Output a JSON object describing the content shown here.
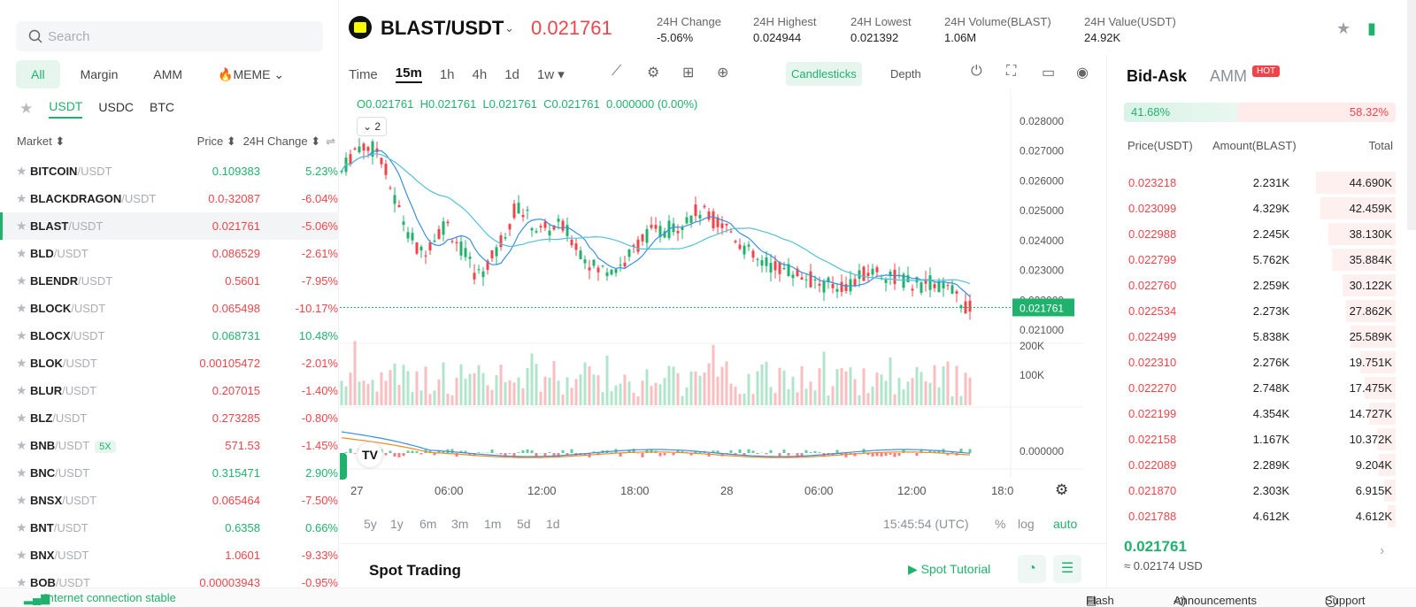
{
  "search": {
    "placeholder": "Search"
  },
  "categories": [
    "All",
    "Margin",
    "AMM",
    "🔥MEME ⌄"
  ],
  "quotes": [
    "USDT",
    "USDC",
    "BTC"
  ],
  "market_header": {
    "market": "Market ⬍",
    "price": "Price ⬍",
    "change": "24H Change ⬍"
  },
  "markets": [
    {
      "base": "BITCOIN",
      "quote": "/USDT",
      "price": "0.109383",
      "change": "5.23%",
      "dir": "up"
    },
    {
      "base": "BLACKDRAGON",
      "quote": "/USDT",
      "price": "0.0₇32087",
      "change": "-6.04%",
      "dir": "down"
    },
    {
      "base": "BLAST",
      "quote": "/USDT",
      "price": "0.021761",
      "change": "-5.06%",
      "dir": "down"
    },
    {
      "base": "BLD",
      "quote": "/USDT",
      "price": "0.086529",
      "change": "-2.61%",
      "dir": "down"
    },
    {
      "base": "BLENDR",
      "quote": "/USDT",
      "price": "0.5601",
      "change": "-7.95%",
      "dir": "down"
    },
    {
      "base": "BLOCK",
      "quote": "/USDT",
      "price": "0.065498",
      "change": "-10.17%",
      "dir": "down"
    },
    {
      "base": "BLOCX",
      "quote": "/USDT",
      "price": "0.068731",
      "change": "10.48%",
      "dir": "up"
    },
    {
      "base": "BLOK",
      "quote": "/USDT",
      "price": "0.00105472",
      "change": "-2.01%",
      "dir": "down"
    },
    {
      "base": "BLUR",
      "quote": "/USDT",
      "price": "0.207015",
      "change": "-1.40%",
      "dir": "down"
    },
    {
      "base": "BLZ",
      "quote": "/USDT",
      "price": "0.273285",
      "change": "-0.80%",
      "dir": "down"
    },
    {
      "base": "BNB",
      "quote": "/USDT",
      "price": "571.53",
      "change": "-1.45%",
      "dir": "down",
      "lev": "5X"
    },
    {
      "base": "BNC",
      "quote": "/USDT",
      "price": "0.315471",
      "change": "2.90%",
      "dir": "up"
    },
    {
      "base": "BNSX",
      "quote": "/USDT",
      "price": "0.065464",
      "change": "-7.50%",
      "dir": "down"
    },
    {
      "base": "BNT",
      "quote": "/USDT",
      "price": "0.6358",
      "change": "0.66%",
      "dir": "up"
    },
    {
      "base": "BNX",
      "quote": "/USDT",
      "price": "1.0601",
      "change": "-9.33%",
      "dir": "down"
    },
    {
      "base": "BOB",
      "quote": "/USDT",
      "price": "0.00003943",
      "change": "-0.95%",
      "dir": "down"
    }
  ],
  "pair": {
    "name": "BLAST/USDT",
    "price": "0.021761",
    "stats": [
      {
        "label": "24H Change",
        "value": "-5.06%"
      },
      {
        "label": "24H Highest",
        "value": "0.024944"
      },
      {
        "label": "24H Lowest",
        "value": "0.021392"
      },
      {
        "label": "24H Volume(BLAST)",
        "value": "1.06M"
      },
      {
        "label": "24H Value(USDT)",
        "value": "24.92K"
      }
    ]
  },
  "timeframes": [
    "Time",
    "15m",
    "1h",
    "4h",
    "1d",
    "1w ▾"
  ],
  "views": {
    "candles": "Candlesticks",
    "depth": "Depth"
  },
  "ohlc": {
    "o": "O0.021761",
    "h": "H0.021761",
    "l": "L0.021761",
    "c": "C0.021761",
    "chg": "0.000000 (0.00%)"
  },
  "indicator_toggle": "⌄ 2",
  "price_axis": [
    "0.028000",
    "0.027000",
    "0.026000",
    "0.025000",
    "0.024000",
    "0.023000",
    "0.022000",
    "0.021000"
  ],
  "last_price_tag": "0.021761",
  "volume_axis": [
    "200K",
    "100K"
  ],
  "macd_axis": "0.000000",
  "time_axis": [
    "27",
    "06:00",
    "12:00",
    "18:00",
    "28",
    "06:00",
    "12:00",
    "18:0"
  ],
  "ranges": [
    "5y",
    "1y",
    "6m",
    "3m",
    "1m",
    "5d",
    "1d"
  ],
  "clock": "15:45:54 (UTC)",
  "scale_opts": [
    "%",
    "log",
    "auto"
  ],
  "spot": {
    "title": "Spot Trading",
    "tutorial": "Spot Tutorial"
  },
  "orderbook": {
    "tabs": [
      "Bid-Ask",
      "AMM"
    ],
    "hot": "HOT",
    "buy_pct": "41.68%",
    "sell_pct": "58.32%",
    "buy_ratio": 0.4168,
    "headers": [
      "Price(USDT)",
      "Amount(BLAST)",
      "Total"
    ],
    "asks": [
      {
        "price": "0.023218",
        "amount": "2.231K",
        "total": "44.690K",
        "depth": 1.0
      },
      {
        "price": "0.023099",
        "amount": "4.329K",
        "total": "42.459K",
        "depth": 0.95
      },
      {
        "price": "0.022988",
        "amount": "2.245K",
        "total": "38.130K",
        "depth": 0.85
      },
      {
        "price": "0.022799",
        "amount": "5.762K",
        "total": "35.884K",
        "depth": 0.8
      },
      {
        "price": "0.022760",
        "amount": "2.259K",
        "total": "30.122K",
        "depth": 0.67
      },
      {
        "price": "0.022534",
        "amount": "2.273K",
        "total": "27.862K",
        "depth": 0.62
      },
      {
        "price": "0.022499",
        "amount": "5.838K",
        "total": "25.589K",
        "depth": 0.57
      },
      {
        "price": "0.022310",
        "amount": "2.276K",
        "total": "19.751K",
        "depth": 0.44
      },
      {
        "price": "0.022270",
        "amount": "2.748K",
        "total": "17.475K",
        "depth": 0.39
      },
      {
        "price": "0.022199",
        "amount": "4.354K",
        "total": "14.727K",
        "depth": 0.33
      },
      {
        "price": "0.022158",
        "amount": "1.167K",
        "total": "10.372K",
        "depth": 0.23
      },
      {
        "price": "0.022089",
        "amount": "2.289K",
        "total": "9.204K",
        "depth": 0.21
      },
      {
        "price": "0.021870",
        "amount": "2.303K",
        "total": "6.915K",
        "depth": 0.15
      },
      {
        "price": "0.021788",
        "amount": "4.612K",
        "total": "4.612K",
        "depth": 0.1
      }
    ],
    "last_price": "0.021761",
    "last_usd": "≈ 0.02174 USD"
  },
  "footer": {
    "connection": "Internet connection stable",
    "flash": "Flash",
    "announcements": "Announcements",
    "support": "Support"
  },
  "colors": {
    "up": "#20b26c",
    "down": "#ef454a",
    "ma1": "#3b8fe0",
    "ma2": "#4fc3d6",
    "macd": "#f08a24"
  }
}
